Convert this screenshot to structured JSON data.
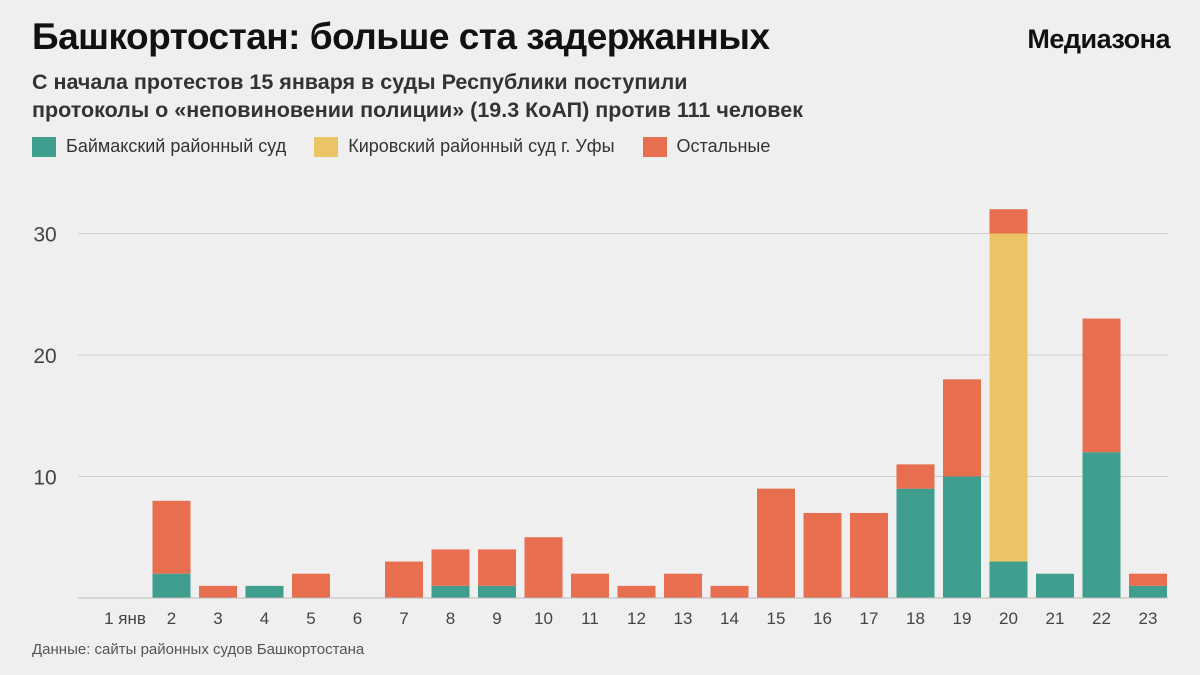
{
  "header": {
    "title": "Башкортостан: больше ста задержанных",
    "brand": "Медиазона",
    "subtitle_line1": "С начала протестов 15 января в суды Республики поступили",
    "subtitle_line2": "протоколы о «неповиновении полиции» (19.3 КоАП) против 111 человек"
  },
  "source": "Данные: сайты районных судов Башкортостана",
  "chart_data": {
    "type": "bar",
    "stacked": true,
    "grid": true,
    "legend_placement": "top-left",
    "ylim": [
      0,
      32
    ],
    "yticks": [
      10,
      20,
      30
    ],
    "categories": [
      "1 янв",
      "2",
      "3",
      "4",
      "5",
      "6",
      "7",
      "8",
      "9",
      "10",
      "11",
      "12",
      "13",
      "14",
      "15",
      "16",
      "17",
      "18",
      "19",
      "20",
      "21",
      "22",
      "23"
    ],
    "series": [
      {
        "name": "Баймакский районный суд",
        "color": "#3f9e8d",
        "values": [
          0,
          2,
          0,
          1,
          0,
          0,
          0,
          1,
          1,
          0,
          0,
          0,
          0,
          0,
          0,
          0,
          0,
          9,
          10,
          3,
          2,
          12,
          1
        ]
      },
      {
        "name": "Кировский районный суд г. Уфы",
        "color": "#ebc466",
        "values": [
          0,
          0,
          0,
          0,
          0,
          0,
          0,
          0,
          0,
          0,
          0,
          0,
          0,
          0,
          0,
          0,
          0,
          0,
          0,
          27,
          0,
          0,
          0
        ]
      },
      {
        "name": "Остальные",
        "color": "#e86e50",
        "values": [
          0,
          6,
          1,
          0,
          2,
          0,
          3,
          3,
          3,
          5,
          2,
          1,
          2,
          1,
          9,
          7,
          7,
          2,
          8,
          2,
          0,
          11,
          1
        ]
      }
    ]
  }
}
